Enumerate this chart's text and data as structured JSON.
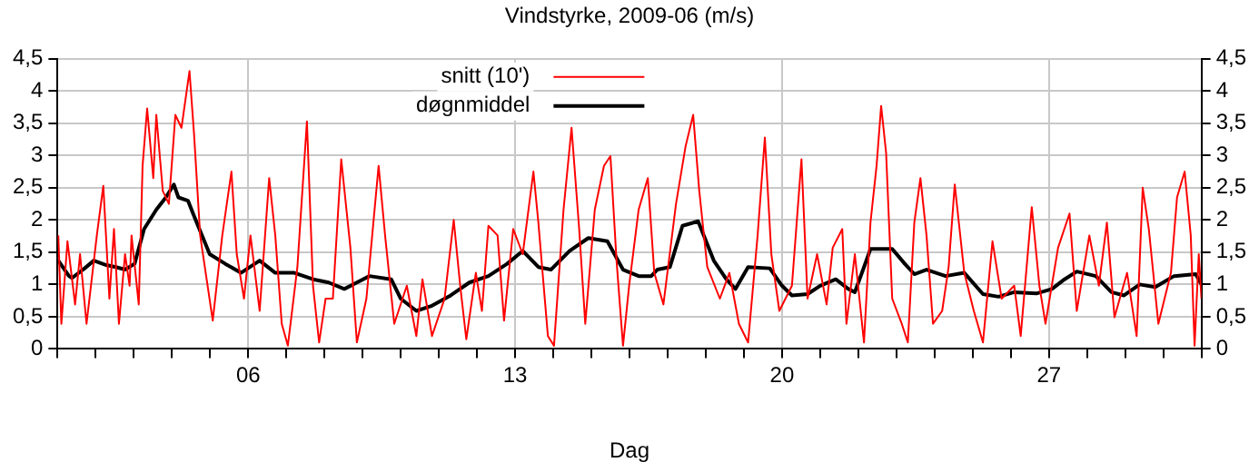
{
  "chart_data": {
    "type": "line",
    "title": "Vindstyrke, 2009-06 (m/s)",
    "xlabel": "Dag",
    "xlim": [
      1,
      31
    ],
    "xticks": [
      {
        "value": 1,
        "label": null
      },
      {
        "value": 2,
        "label": null
      },
      {
        "value": 3,
        "label": null
      },
      {
        "value": 4,
        "label": null
      },
      {
        "value": 5,
        "label": null
      },
      {
        "value": 6,
        "label": "06"
      },
      {
        "value": 7,
        "label": null
      },
      {
        "value": 8,
        "label": null
      },
      {
        "value": 9,
        "label": null
      },
      {
        "value": 10,
        "label": null
      },
      {
        "value": 11,
        "label": null
      },
      {
        "value": 12,
        "label": null
      },
      {
        "value": 13,
        "label": "13"
      },
      {
        "value": 14,
        "label": null
      },
      {
        "value": 15,
        "label": null
      },
      {
        "value": 16,
        "label": null
      },
      {
        "value": 17,
        "label": null
      },
      {
        "value": 18,
        "label": null
      },
      {
        "value": 19,
        "label": null
      },
      {
        "value": 20,
        "label": "20"
      },
      {
        "value": 21,
        "label": null
      },
      {
        "value": 22,
        "label": null
      },
      {
        "value": 23,
        "label": null
      },
      {
        "value": 24,
        "label": null
      },
      {
        "value": 25,
        "label": null
      },
      {
        "value": 26,
        "label": null
      },
      {
        "value": 27,
        "label": "27"
      },
      {
        "value": 28,
        "label": null
      },
      {
        "value": 29,
        "label": null
      },
      {
        "value": 30,
        "label": null
      },
      {
        "value": 31,
        "label": null
      }
    ],
    "ylim": [
      0,
      4.5
    ],
    "yticks": [
      0,
      {
        "value": 0.5,
        "label": "0,5"
      },
      1,
      {
        "value": 1.5,
        "label": "1,5"
      },
      2,
      {
        "value": 2.5,
        "label": "2,5"
      },
      3,
      {
        "value": 3.5,
        "label": "3,5"
      },
      4,
      {
        "value": 4.5,
        "label": "4,5"
      }
    ],
    "y2lim": [
      0,
      4.5
    ],
    "y2ticks": [
      0,
      {
        "value": 0.5,
        "label": "0,5"
      },
      1,
      {
        "value": 1.5,
        "label": "1,5"
      },
      2,
      {
        "value": 2.5,
        "label": "2,5"
      },
      3,
      {
        "value": 3.5,
        "label": "3,5"
      },
      4,
      {
        "value": 4.5,
        "label": "4,5"
      }
    ],
    "grid": true,
    "legend": "top",
    "marker": "none",
    "line_style": "solid",
    "series": [
      {
        "name": "snitt (10')",
        "color": "#ff0000",
        "x": [
          1.02,
          1.1,
          1.26,
          1.46,
          1.59,
          1.76,
          2.03,
          2.2,
          2.36,
          2.48,
          2.61,
          2.77,
          2.89,
          2.94,
          3.13,
          3.23,
          3.35,
          3.51,
          3.59,
          3.76,
          3.92,
          4.09,
          4.25,
          4.46,
          4.58,
          4.74,
          5.07,
          5.32,
          5.56,
          5.7,
          5.89,
          6.06,
          6.3,
          6.55,
          6.71,
          6.88,
          7.04,
          7.29,
          7.54,
          7.7,
          7.86,
          8.03,
          8.22,
          8.44,
          8.68,
          8.85,
          9.1,
          9.42,
          9.59,
          9.83,
          10.16,
          10.41,
          10.57,
          10.82,
          11.15,
          11.39,
          11.56,
          11.72,
          11.97,
          12.13,
          12.3,
          12.54,
          12.71,
          12.95,
          13.2,
          13.48,
          13.61,
          13.86,
          14.02,
          14.27,
          14.48,
          14.68,
          14.84,
          15.09,
          15.33,
          15.5,
          15.66,
          15.83,
          15.99,
          16.24,
          16.48,
          16.65,
          16.89,
          17.22,
          17.47,
          17.67,
          17.83,
          18.04,
          18.37,
          18.62,
          18.87,
          19.11,
          19.36,
          19.55,
          19.72,
          19.93,
          20.26,
          20.51,
          20.67,
          20.92,
          21.17,
          21.33,
          21.58,
          21.69,
          21.91,
          22.15,
          22.32,
          22.48,
          22.6,
          22.73,
          22.89,
          23.14,
          23.3,
          23.47,
          23.63,
          23.79,
          23.96,
          24.2,
          24.37,
          24.53,
          24.78,
          25.03,
          25.27,
          25.52,
          25.76,
          26.09,
          26.26,
          26.55,
          26.75,
          26.91,
          27.24,
          27.54,
          27.73,
          28.06,
          28.31,
          28.52,
          28.72,
          29.05,
          29.3,
          29.46,
          29.62,
          29.87,
          30.2,
          30.36,
          30.56,
          30.72,
          30.82,
          30.93,
          31.0
        ],
        "values": [
          1.76,
          0.39,
          1.67,
          0.69,
          1.47,
          0.39,
          1.76,
          2.53,
          0.78,
          1.86,
          0.39,
          1.47,
          0.98,
          1.76,
          0.69,
          2.84,
          3.73,
          2.65,
          3.63,
          2.45,
          2.25,
          3.63,
          3.43,
          4.31,
          3.33,
          1.76,
          0.44,
          1.76,
          2.75,
          1.47,
          0.78,
          1.76,
          0.59,
          2.65,
          1.76,
          0.39,
          0.05,
          1.27,
          3.53,
          0.98,
          0.1,
          0.78,
          0.78,
          2.94,
          1.57,
          0.1,
          0.78,
          2.84,
          1.76,
          0.39,
          0.98,
          0.2,
          1.08,
          0.2,
          0.78,
          2.0,
          0.98,
          0.15,
          1.18,
          0.59,
          1.91,
          1.76,
          0.44,
          1.86,
          1.47,
          2.75,
          1.96,
          0.2,
          0.05,
          2.16,
          3.43,
          1.86,
          0.39,
          2.16,
          2.84,
          2.99,
          1.37,
          0.05,
          0.98,
          2.16,
          2.65,
          1.18,
          0.69,
          2.25,
          3.14,
          3.63,
          2.45,
          1.27,
          0.78,
          1.18,
          0.39,
          0.1,
          1.76,
          3.28,
          1.47,
          0.59,
          0.98,
          2.94,
          0.78,
          1.47,
          0.69,
          1.57,
          1.86,
          0.39,
          1.47,
          0.1,
          1.96,
          2.84,
          3.77,
          3.04,
          0.78,
          0.39,
          0.1,
          1.96,
          2.65,
          1.76,
          0.39,
          0.59,
          1.27,
          2.55,
          1.18,
          0.59,
          0.1,
          1.67,
          0.78,
          0.98,
          0.2,
          2.2,
          0.98,
          0.39,
          1.57,
          2.1,
          0.59,
          1.76,
          0.98,
          1.96,
          0.49,
          1.18,
          0.2,
          2.5,
          1.86,
          0.39,
          1.18,
          2.35,
          2.75,
          1.76,
          0.05,
          1.47,
          0.78
        ]
      },
      {
        "name": "døgnmiddel",
        "color": "#000000",
        "x": [
          1.02,
          1.3,
          1.38,
          1.71,
          1.95,
          2.28,
          2.53,
          2.77,
          3.02,
          3.27,
          3.59,
          3.84,
          4.05,
          4.17,
          4.42,
          4.58,
          4.99,
          5.4,
          5.81,
          6.3,
          6.71,
          7.21,
          7.7,
          8.11,
          8.52,
          8.85,
          9.18,
          9.75,
          10.0,
          10.41,
          10.82,
          11.31,
          11.8,
          12.3,
          12.79,
          13.2,
          13.61,
          13.94,
          14.43,
          14.92,
          15.42,
          15.83,
          16.24,
          16.57,
          16.73,
          17.06,
          17.39,
          17.8,
          18.21,
          18.54,
          18.78,
          19.11,
          19.68,
          20.0,
          20.26,
          20.67,
          21.0,
          21.41,
          21.74,
          21.91,
          22.15,
          22.32,
          22.89,
          23.22,
          23.47,
          23.79,
          24.29,
          24.78,
          25.27,
          25.68,
          26.09,
          26.67,
          27.08,
          27.41,
          27.73,
          28.23,
          28.64,
          28.97,
          29.38,
          29.79,
          30.28,
          30.85,
          31.0
        ],
        "values": [
          1.37,
          1.13,
          1.1,
          1.25,
          1.37,
          1.3,
          1.27,
          1.23,
          1.32,
          1.86,
          2.16,
          2.35,
          2.55,
          2.35,
          2.3,
          2.06,
          1.47,
          1.32,
          1.18,
          1.37,
          1.18,
          1.18,
          1.08,
          1.03,
          0.93,
          1.03,
          1.13,
          1.08,
          0.78,
          0.59,
          0.67,
          0.83,
          1.03,
          1.13,
          1.32,
          1.52,
          1.27,
          1.23,
          1.52,
          1.72,
          1.67,
          1.23,
          1.13,
          1.13,
          1.23,
          1.27,
          1.91,
          1.98,
          1.37,
          1.08,
          0.93,
          1.27,
          1.25,
          0.98,
          0.83,
          0.85,
          0.98,
          1.08,
          0.93,
          0.88,
          1.27,
          1.55,
          1.55,
          1.32,
          1.16,
          1.23,
          1.13,
          1.18,
          0.85,
          0.81,
          0.88,
          0.86,
          0.93,
          1.08,
          1.2,
          1.13,
          0.88,
          0.83,
          1.0,
          0.96,
          1.13,
          1.16,
          1.0
        ]
      }
    ]
  }
}
